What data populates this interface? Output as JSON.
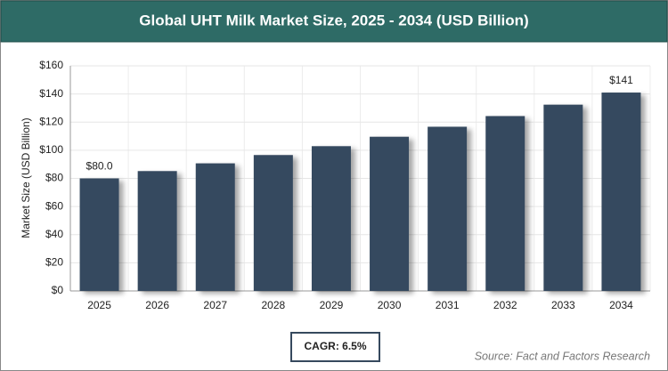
{
  "chart_data": {
    "type": "bar",
    "title": "Global UHT Milk Market Size, 2025 - 2034 (USD Billion)",
    "y_label": "Market Size (USD Billion)",
    "categories": [
      "2025",
      "2026",
      "2027",
      "2028",
      "2029",
      "2030",
      "2031",
      "2032",
      "2033",
      "2034"
    ],
    "values": [
      80.0,
      85.2,
      90.7,
      96.6,
      102.9,
      109.6,
      116.7,
      124.3,
      132.4,
      141
    ],
    "value_labels": [
      "$80.0",
      null,
      null,
      null,
      null,
      null,
      null,
      null,
      null,
      "$141"
    ],
    "color": "#36495e",
    "ylim": [
      0,
      160
    ],
    "yticks": [
      {
        "value": 0,
        "label": "$0"
      },
      {
        "value": 20,
        "label": "$20"
      },
      {
        "value": 40,
        "label": "$40"
      },
      {
        "value": 60,
        "label": "$60"
      },
      {
        "value": 80,
        "label": "$80"
      },
      {
        "value": 100,
        "label": "$100"
      },
      {
        "value": 120,
        "label": "$120"
      },
      {
        "value": 140,
        "label": "$140"
      },
      {
        "value": 160,
        "label": "$160"
      }
    ],
    "grid": true,
    "annotation": "CAGR: 6.5%",
    "source": "Source: Fact and Factors Research"
  }
}
